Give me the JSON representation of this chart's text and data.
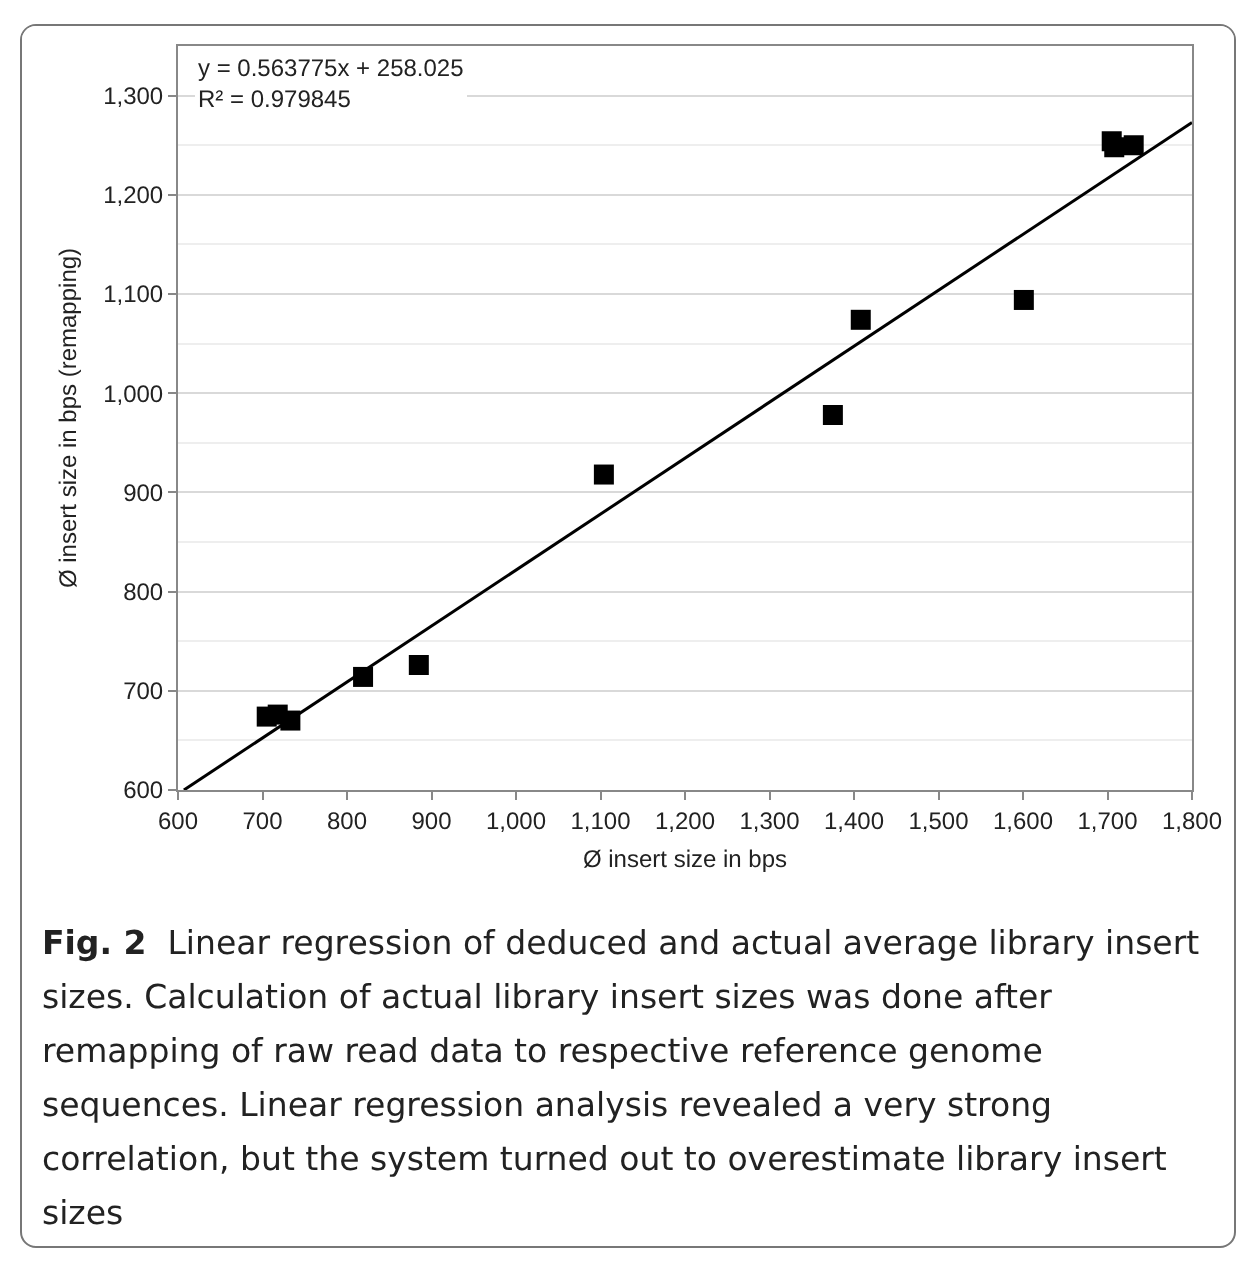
{
  "chart_data": {
    "type": "scatter",
    "xlabel": "Ø insert size in bps",
    "ylabel": "Ø insert size in bps (remapping)",
    "x": [
      705,
      718,
      733,
      819,
      885,
      1104,
      1375,
      1408,
      1601,
      1705,
      1708,
      1731
    ],
    "series": [
      {
        "type": "scatter",
        "color": "#000000",
        "marker": "square",
        "values": [
          674,
          676,
          670,
          714,
          726,
          918,
          978,
          1074,
          1094,
          1254,
          1248,
          1250
        ]
      },
      {
        "type": "line",
        "color": "#000000",
        "line_style": "solid",
        "marker": "none",
        "x": [
          607,
          1800
        ],
        "values": [
          600,
          1273
        ]
      }
    ],
    "xlim": [
      600,
      1800
    ],
    "ylim": [
      600,
      1350
    ],
    "xticks": [
      600,
      700,
      800,
      900,
      {
        "value": 1000,
        "label": "1,000"
      },
      {
        "value": 1100,
        "label": "1,100"
      },
      {
        "value": 1200,
        "label": "1,200"
      },
      {
        "value": 1300,
        "label": "1,300"
      },
      {
        "value": 1400,
        "label": "1,400"
      },
      {
        "value": 1500,
        "label": "1,500"
      },
      {
        "value": 1600,
        "label": "1,600"
      },
      {
        "value": 1700,
        "label": "1,700"
      },
      {
        "value": 1800,
        "label": "1,800"
      }
    ],
    "yticks": [
      600,
      700,
      800,
      900,
      {
        "value": 1000,
        "label": "1,000"
      },
      {
        "value": 1100,
        "label": "1,100"
      },
      {
        "value": 1200,
        "label": "1,200"
      },
      {
        "value": 1300,
        "label": "1,300"
      }
    ],
    "grid": "y",
    "annotations": [
      "y = 0.563775x + 258.025",
      "R² = 0.979845",
      "Fig. 2",
      "Linear regression of deduced and actual average library insert sizes. Calculation of actual library insert sizes was done after remapping of raw read data to respective reference genome sequences. Linear regression analysis revealed a very strong correlation, but the system turned out to overestimate library insert sizes"
    ]
  }
}
